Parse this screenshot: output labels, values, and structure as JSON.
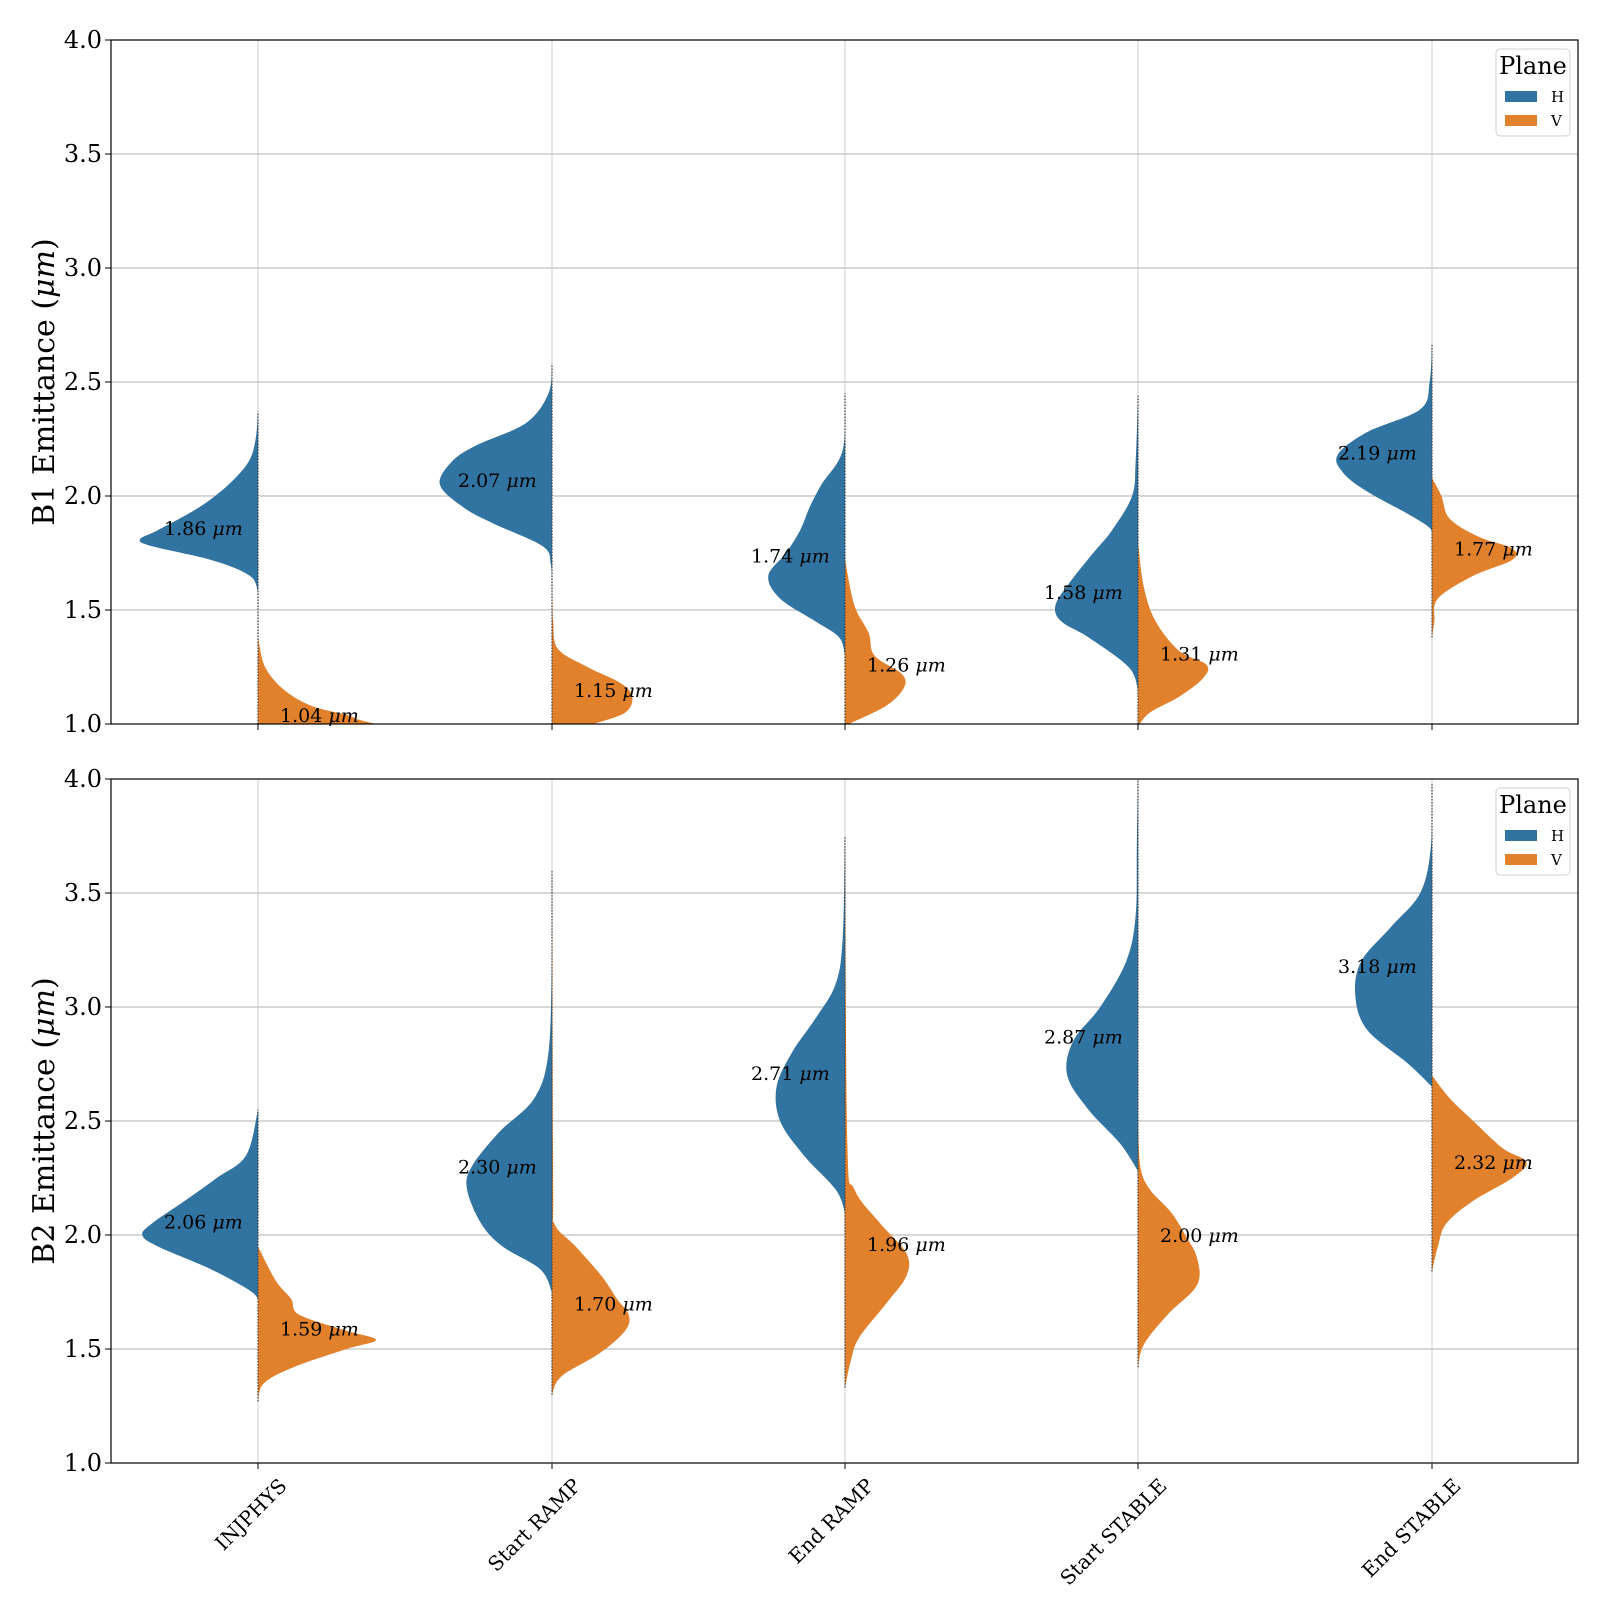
{
  "chart_data": {
    "type": "violin",
    "split_by": "Plane",
    "categories": [
      "INJPHYS",
      "Start RAMP",
      "End RAMP",
      "Start STABLE",
      "End STABLE"
    ],
    "legend": {
      "title": "Plane",
      "position": "top-right",
      "entries": [
        {
          "label": "H",
          "color": "#3274a1"
        },
        {
          "label": "V",
          "color": "#e1812c"
        }
      ]
    },
    "grid": true,
    "panels": [
      {
        "ylabel": "B1 Emittance ($\\mu m$)",
        "ylabel_prefix": "B1 Emittance (",
        "ylabel_unit": "μm",
        "ylabel_suffix": ")",
        "ylim": [
          1.0,
          4.0
        ],
        "yticks": [
          "1.0",
          "1.5",
          "2.0",
          "2.5",
          "3.0",
          "3.5",
          "4.0"
        ],
        "series": [
          {
            "name": "H",
            "medians": [
              1.86,
              2.07,
              1.74,
              1.58,
              2.19
            ],
            "annotations": [
              "1.86",
              "2.07",
              "1.74",
              "1.58",
              "2.19"
            ],
            "shapes": [
              [
                [
                  1.48,
                  0
                ],
                [
                  1.6,
                  0.01
                ],
                [
                  1.66,
                  0.1
                ],
                [
                  1.72,
                  0.4
                ],
                [
                  1.78,
                  0.9
                ],
                [
                  1.81,
                  1.0
                ],
                [
                  1.85,
                  0.85
                ],
                [
                  1.95,
                  0.5
                ],
                [
                  2.05,
                  0.25
                ],
                [
                  2.15,
                  0.08
                ],
                [
                  2.25,
                  0.02
                ],
                [
                  2.37,
                  0
                ]
              ],
              [
                [
                  1.6,
                  0
                ],
                [
                  1.7,
                  0.01
                ],
                [
                  1.78,
                  0.08
                ],
                [
                  1.88,
                  0.5
                ],
                [
                  1.95,
                  0.75
                ],
                [
                  2.05,
                  0.95
                ],
                [
                  2.15,
                  0.85
                ],
                [
                  2.22,
                  0.65
                ],
                [
                  2.32,
                  0.22
                ],
                [
                  2.45,
                  0.03
                ],
                [
                  2.58,
                  0
                ]
              ],
              [
                [
                  1.3,
                  0
                ],
                [
                  1.38,
                  0.05
                ],
                [
                  1.45,
                  0.25
                ],
                [
                  1.55,
                  0.55
                ],
                [
                  1.65,
                  0.65
                ],
                [
                  1.75,
                  0.5
                ],
                [
                  1.85,
                  0.38
                ],
                [
                  1.95,
                  0.3
                ],
                [
                  2.05,
                  0.2
                ],
                [
                  2.2,
                  0.02
                ],
                [
                  2.45,
                  0
                ]
              ],
              [
                [
                  1.15,
                  0
                ],
                [
                  1.25,
                  0.08
                ],
                [
                  1.38,
                  0.42
                ],
                [
                  1.45,
                  0.65
                ],
                [
                  1.52,
                  0.7
                ],
                [
                  1.62,
                  0.58
                ],
                [
                  1.75,
                  0.38
                ],
                [
                  1.85,
                  0.22
                ],
                [
                  2.0,
                  0.05
                ],
                [
                  2.15,
                  0.02
                ],
                [
                  2.44,
                  0
                ]
              ],
              [
                [
                  1.82,
                  0
                ],
                [
                  1.86,
                  0.02
                ],
                [
                  1.92,
                  0.2
                ],
                [
                  2.02,
                  0.55
                ],
                [
                  2.1,
                  0.75
                ],
                [
                  2.18,
                  0.8
                ],
                [
                  2.28,
                  0.55
                ],
                [
                  2.38,
                  0.1
                ],
                [
                  2.5,
                  0.02
                ],
                [
                  2.67,
                  0
                ]
              ]
            ]
          },
          {
            "name": "V",
            "medians": [
              1.04,
              1.15,
              1.26,
              1.31,
              1.77
            ],
            "annotations": [
              "1.04",
              "1.15",
              "1.26",
              "1.31",
              "1.77"
            ],
            "shapes": [
              [
                [
                  1.0,
                  1.0
                ],
                [
                  1.02,
                  0.85
                ],
                [
                  1.04,
                  0.75
                ],
                [
                  1.08,
                  0.45
                ],
                [
                  1.15,
                  0.22
                ],
                [
                  1.25,
                  0.06
                ],
                [
                  1.38,
                  0
                ]
              ],
              [
                [
                  1.0,
                  0.35
                ],
                [
                  1.05,
                  0.62
                ],
                [
                  1.12,
                  0.68
                ],
                [
                  1.18,
                  0.58
                ],
                [
                  1.25,
                  0.3
                ],
                [
                  1.33,
                  0.05
                ],
                [
                  1.45,
                  0.01
                ],
                [
                  1.6,
                  0
                ]
              ],
              [
                [
                  1.0,
                  0.03
                ],
                [
                  1.08,
                  0.35
                ],
                [
                  1.16,
                  0.5
                ],
                [
                  1.22,
                  0.48
                ],
                [
                  1.3,
                  0.25
                ],
                [
                  1.4,
                  0.2
                ],
                [
                  1.52,
                  0.08
                ],
                [
                  1.72,
                  0
                ]
              ],
              [
                [
                  0.99,
                  0
                ],
                [
                  1.05,
                  0.1
                ],
                [
                  1.12,
                  0.35
                ],
                [
                  1.2,
                  0.55
                ],
                [
                  1.26,
                  0.58
                ],
                [
                  1.32,
                  0.35
                ],
                [
                  1.45,
                  0.15
                ],
                [
                  1.6,
                  0.05
                ],
                [
                  1.8,
                  0
                ]
              ],
              [
                [
                  1.38,
                  0
                ],
                [
                  1.45,
                  0.02
                ],
                [
                  1.55,
                  0.05
                ],
                [
                  1.65,
                  0.35
                ],
                [
                  1.72,
                  0.68
                ],
                [
                  1.77,
                  0.68
                ],
                [
                  1.82,
                  0.4
                ],
                [
                  1.9,
                  0.15
                ],
                [
                  2.0,
                  0.08
                ],
                [
                  2.08,
                  0
                ]
              ]
            ]
          }
        ]
      },
      {
        "ylabel": "B2 Emittance ($\\mu m$)",
        "ylabel_prefix": "B2 Emittance (",
        "ylabel_unit": "μm",
        "ylabel_suffix": ")",
        "ylim": [
          1.0,
          4.0
        ],
        "yticks": [
          "1.0",
          "1.5",
          "2.0",
          "2.5",
          "3.0",
          "3.5",
          "4.0"
        ],
        "series": [
          {
            "name": "H",
            "medians": [
              2.06,
              2.3,
              2.71,
              2.87,
              3.18
            ],
            "annotations": [
              "2.06",
              "2.30",
              "2.71",
              "2.87",
              "3.18"
            ],
            "shapes": [
              [
                [
                  1.72,
                  0
                ],
                [
                  1.76,
                  0.08
                ],
                [
                  1.85,
                  0.4
                ],
                [
                  1.95,
                  0.85
                ],
                [
                  2.0,
                  0.98
                ],
                [
                  2.05,
                  0.9
                ],
                [
                  2.15,
                  0.62
                ],
                [
                  2.25,
                  0.35
                ],
                [
                  2.35,
                  0.1
                ],
                [
                  2.55,
                  0
                ]
              ],
              [
                [
                  1.75,
                  0
                ],
                [
                  1.85,
                  0.1
                ],
                [
                  1.95,
                  0.42
                ],
                [
                  2.05,
                  0.6
                ],
                [
                  2.2,
                  0.72
                ],
                [
                  2.3,
                  0.68
                ],
                [
                  2.45,
                  0.45
                ],
                [
                  2.6,
                  0.15
                ],
                [
                  2.8,
                  0.03
                ],
                [
                  3.2,
                  0
                ]
              ],
              [
                [
                  2.1,
                  0
                ],
                [
                  2.2,
                  0.08
                ],
                [
                  2.35,
                  0.35
                ],
                [
                  2.5,
                  0.55
                ],
                [
                  2.65,
                  0.58
                ],
                [
                  2.8,
                  0.45
                ],
                [
                  2.95,
                  0.25
                ],
                [
                  3.1,
                  0.08
                ],
                [
                  3.3,
                  0.02
                ],
                [
                  3.75,
                  0
                ]
              ],
              [
                [
                  2.28,
                  0
                ],
                [
                  2.4,
                  0.15
                ],
                [
                  2.55,
                  0.42
                ],
                [
                  2.7,
                  0.6
                ],
                [
                  2.85,
                  0.55
                ],
                [
                  3.0,
                  0.32
                ],
                [
                  3.2,
                  0.1
                ],
                [
                  3.4,
                  0.02
                ],
                [
                  3.7,
                  0.01
                ],
                [
                  4.0,
                  0
                ]
              ],
              [
                [
                  2.65,
                  0
                ],
                [
                  2.75,
                  0.2
                ],
                [
                  2.9,
                  0.55
                ],
                [
                  3.05,
                  0.65
                ],
                [
                  3.2,
                  0.6
                ],
                [
                  3.35,
                  0.35
                ],
                [
                  3.5,
                  0.1
                ],
                [
                  3.7,
                  0.01
                ],
                [
                  3.98,
                  0
                ]
              ]
            ]
          },
          {
            "name": "V",
            "medians": [
              1.59,
              1.7,
              1.96,
              2.0,
              2.32
            ],
            "annotations": [
              "1.59",
              "1.70",
              "1.96",
              "2.00",
              "2.32"
            ],
            "shapes": [
              [
                [
                  1.27,
                  0
                ],
                [
                  1.35,
                  0.05
                ],
                [
                  1.42,
                  0.3
                ],
                [
                  1.5,
                  0.75
                ],
                [
                  1.54,
                  1.0
                ],
                [
                  1.58,
                  0.75
                ],
                [
                  1.65,
                  0.35
                ],
                [
                  1.72,
                  0.28
                ],
                [
                  1.8,
                  0.15
                ],
                [
                  1.95,
                  0
                ]
              ],
              [
                [
                  1.3,
                  0
                ],
                [
                  1.38,
                  0.08
                ],
                [
                  1.48,
                  0.4
                ],
                [
                  1.58,
                  0.62
                ],
                [
                  1.65,
                  0.65
                ],
                [
                  1.72,
                  0.55
                ],
                [
                  1.82,
                  0.42
                ],
                [
                  1.95,
                  0.2
                ],
                [
                  2.05,
                  0.02
                ],
                [
                  2.2,
                  0.01
                ],
                [
                  3.6,
                  0
                ]
              ],
              [
                [
                  1.33,
                  0
                ],
                [
                  1.45,
                  0.05
                ],
                [
                  1.55,
                  0.12
                ],
                [
                  1.7,
                  0.35
                ],
                [
                  1.82,
                  0.52
                ],
                [
                  1.92,
                  0.52
                ],
                [
                  2.05,
                  0.3
                ],
                [
                  2.2,
                  0.08
                ],
                [
                  2.4,
                  0.02
                ],
                [
                  3.7,
                  0
                ]
              ],
              [
                [
                  1.42,
                  0
                ],
                [
                  1.52,
                  0.05
                ],
                [
                  1.65,
                  0.25
                ],
                [
                  1.78,
                  0.5
                ],
                [
                  1.9,
                  0.5
                ],
                [
                  2.0,
                  0.4
                ],
                [
                  2.1,
                  0.28
                ],
                [
                  2.2,
                  0.1
                ],
                [
                  2.3,
                  0.02
                ],
                [
                  2.5,
                  0
                ]
              ],
              [
                [
                  1.84,
                  0
                ],
                [
                  1.95,
                  0.05
                ],
                [
                  2.05,
                  0.12
                ],
                [
                  2.15,
                  0.35
                ],
                [
                  2.25,
                  0.68
                ],
                [
                  2.32,
                  0.8
                ],
                [
                  2.38,
                  0.6
                ],
                [
                  2.5,
                  0.35
                ],
                [
                  2.6,
                  0.15
                ],
                [
                  2.7,
                  0
                ]
              ]
            ]
          }
        ]
      }
    ]
  }
}
